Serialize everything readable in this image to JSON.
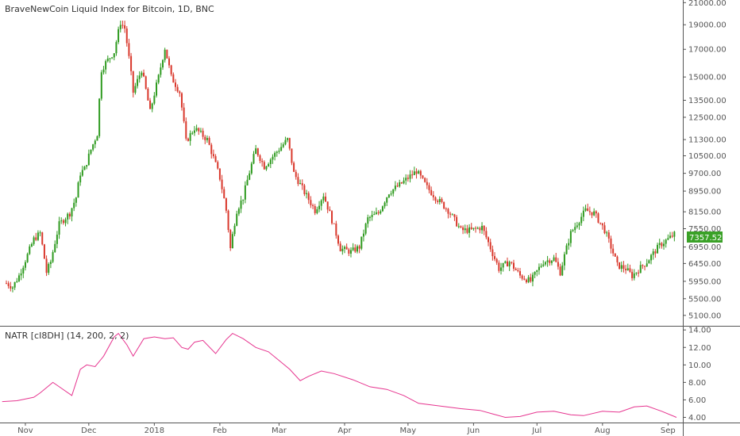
{
  "header": {
    "title": "BraveNewCoin Liquid Index for Bitcoin, 1D, BNC"
  },
  "indicator": {
    "label": "NATR [cI8DH] (14, 200, 2, 2)"
  },
  "price_label": {
    "text": "7357.52"
  },
  "colors": {
    "up": "#2e9a1f",
    "down": "#d9382c",
    "natr": "#e6348f",
    "axis": "#555555",
    "price_bg": "#3aa127",
    "grid": "#e8e8e8"
  },
  "chart_data": [
    {
      "type": "candlestick",
      "title": "BraveNewCoin Liquid Index for Bitcoin, 1D, BNC",
      "ylim": [
        4900,
        21100
      ],
      "y_ticks": [
        "21000.00",
        "19000.00",
        "17000.00",
        "15000.00",
        "13500.00",
        "12500.00",
        "11300.00",
        "10500.00",
        "9700.00",
        "8950.00",
        "8150.00",
        "7550.00",
        "6950.00",
        "6450.00",
        "5950.00",
        "5500.00",
        "5100.00"
      ],
      "x_ticks": [
        "Nov",
        "Dec",
        "2018",
        "Feb",
        "Mar",
        "Apr",
        "May",
        "Jun",
        "Jul",
        "Aug",
        "Sep"
      ],
      "last_price": 7357.52,
      "close_path": [
        [
          "2017-10-23",
          5900
        ],
        [
          "2017-10-26",
          5800
        ],
        [
          "2017-10-29",
          6100
        ],
        [
          "2017-11-02",
          6700
        ],
        [
          "2017-11-05",
          7200
        ],
        [
          "2017-11-08",
          7400
        ],
        [
          "2017-11-11",
          6200
        ],
        [
          "2017-11-13",
          6500
        ],
        [
          "2017-11-17",
          7700
        ],
        [
          "2017-11-22",
          8100
        ],
        [
          "2017-11-25",
          8700
        ],
        [
          "2017-11-27",
          9700
        ],
        [
          "2017-11-29",
          9900
        ],
        [
          "2017-12-02",
          10800
        ],
        [
          "2017-12-05",
          11600
        ],
        [
          "2017-12-07",
          15500
        ],
        [
          "2017-12-09",
          16000
        ],
        [
          "2017-12-13",
          16800
        ],
        [
          "2017-12-16",
          19200
        ],
        [
          "2017-12-18",
          18700
        ],
        [
          "2017-12-22",
          14000
        ],
        [
          "2017-12-26",
          15500
        ],
        [
          "2017-12-30",
          12800
        ],
        [
          "2018-01-03",
          15000
        ],
        [
          "2018-01-06",
          17100
        ],
        [
          "2018-01-09",
          15000
        ],
        [
          "2018-01-13",
          14000
        ],
        [
          "2018-01-16",
          11200
        ],
        [
          "2018-01-20",
          11900
        ],
        [
          "2018-01-26",
          11300
        ],
        [
          "2018-02-01",
          9500
        ],
        [
          "2018-02-04",
          8200
        ],
        [
          "2018-02-06",
          6900
        ],
        [
          "2018-02-09",
          8200
        ],
        [
          "2018-02-12",
          8700
        ],
        [
          "2018-02-18",
          10800
        ],
        [
          "2018-02-22",
          10000
        ],
        [
          "2018-02-28",
          10700
        ],
        [
          "2018-03-05",
          11300
        ],
        [
          "2018-03-08",
          9700
        ],
        [
          "2018-03-13",
          8900
        ],
        [
          "2018-03-18",
          8200
        ],
        [
          "2018-03-22",
          8800
        ],
        [
          "2018-03-30",
          6900
        ],
        [
          "2018-04-04",
          6800
        ],
        [
          "2018-04-08",
          6950
        ],
        [
          "2018-04-12",
          7900
        ],
        [
          "2018-04-17",
          8100
        ],
        [
          "2018-04-22",
          8900
        ],
        [
          "2018-04-27",
          9200
        ],
        [
          "2018-05-05",
          9800
        ],
        [
          "2018-05-10",
          9100
        ],
        [
          "2018-05-14",
          8700
        ],
        [
          "2018-05-20",
          8200
        ],
        [
          "2018-05-26",
          7500
        ],
        [
          "2018-05-31",
          7500
        ],
        [
          "2018-06-05",
          7600
        ],
        [
          "2018-06-10",
          6750
        ],
        [
          "2018-06-13",
          6300
        ],
        [
          "2018-06-18",
          6500
        ],
        [
          "2018-06-23",
          6100
        ],
        [
          "2018-06-28",
          5950
        ],
        [
          "2018-07-04",
          6500
        ],
        [
          "2018-07-09",
          6600
        ],
        [
          "2018-07-12",
          6200
        ],
        [
          "2018-07-17",
          7400
        ],
        [
          "2018-07-24",
          8200
        ],
        [
          "2018-07-28",
          8100
        ],
        [
          "2018-08-02",
          7500
        ],
        [
          "2018-08-08",
          6400
        ],
        [
          "2018-08-12",
          6300
        ],
        [
          "2018-08-15",
          6100
        ],
        [
          "2018-08-22",
          6500
        ],
        [
          "2018-08-28",
          7000
        ],
        [
          "2018-09-04",
          7357
        ]
      ]
    },
    {
      "type": "line",
      "title": "NATR [cI8DH] (14, 200, 2, 2)",
      "ylim": [
        3.5,
        14.2
      ],
      "y_ticks": [
        "14.00",
        "12.00",
        "10.00",
        "8.00",
        "6.00",
        "4.00"
      ],
      "series": [
        {
          "name": "NATR",
          "points": [
            [
              "2017-10-21",
              5.8
            ],
            [
              "2017-10-28",
              5.9
            ],
            [
              "2017-11-05",
              6.3
            ],
            [
              "2017-11-08",
              6.8
            ],
            [
              "2017-11-14",
              8.0
            ],
            [
              "2017-11-17",
              7.5
            ],
            [
              "2017-11-23",
              6.5
            ],
            [
              "2017-11-27",
              9.5
            ],
            [
              "2017-11-30",
              10.0
            ],
            [
              "2017-12-04",
              9.8
            ],
            [
              "2017-12-08",
              11.0
            ],
            [
              "2017-12-13",
              13.2
            ],
            [
              "2017-12-15",
              13.6
            ],
            [
              "2017-12-19",
              12.3
            ],
            [
              "2017-12-22",
              11.0
            ],
            [
              "2017-12-27",
              13.0
            ],
            [
              "2018-01-01",
              13.2
            ],
            [
              "2018-01-06",
              13.0
            ],
            [
              "2018-01-10",
              13.1
            ],
            [
              "2018-01-14",
              12.0
            ],
            [
              "2018-01-17",
              11.8
            ],
            [
              "2018-01-20",
              12.6
            ],
            [
              "2018-01-24",
              12.8
            ],
            [
              "2018-01-30",
              11.3
            ],
            [
              "2018-02-04",
              12.9
            ],
            [
              "2018-02-07",
              13.6
            ],
            [
              "2018-02-12",
              13.0
            ],
            [
              "2018-02-18",
              12.0
            ],
            [
              "2018-02-24",
              11.5
            ],
            [
              "2018-03-01",
              10.5
            ],
            [
              "2018-03-06",
              9.5
            ],
            [
              "2018-03-11",
              8.2
            ],
            [
              "2018-03-15",
              8.7
            ],
            [
              "2018-03-21",
              9.3
            ],
            [
              "2018-03-27",
              9.0
            ],
            [
              "2018-04-05",
              8.3
            ],
            [
              "2018-04-13",
              7.5
            ],
            [
              "2018-04-21",
              7.2
            ],
            [
              "2018-04-29",
              6.5
            ],
            [
              "2018-05-06",
              5.6
            ],
            [
              "2018-05-16",
              5.3
            ],
            [
              "2018-05-26",
              5.0
            ],
            [
              "2018-06-04",
              4.8
            ],
            [
              "2018-06-10",
              4.4
            ],
            [
              "2018-06-16",
              4.0
            ],
            [
              "2018-06-23",
              4.1
            ],
            [
              "2018-07-01",
              4.6
            ],
            [
              "2018-07-09",
              4.7
            ],
            [
              "2018-07-17",
              4.3
            ],
            [
              "2018-07-23",
              4.2
            ],
            [
              "2018-08-01",
              4.7
            ],
            [
              "2018-08-09",
              4.6
            ],
            [
              "2018-08-16",
              5.2
            ],
            [
              "2018-08-22",
              5.3
            ],
            [
              "2018-08-29",
              4.7
            ],
            [
              "2018-09-05",
              4.0
            ]
          ]
        }
      ]
    }
  ]
}
